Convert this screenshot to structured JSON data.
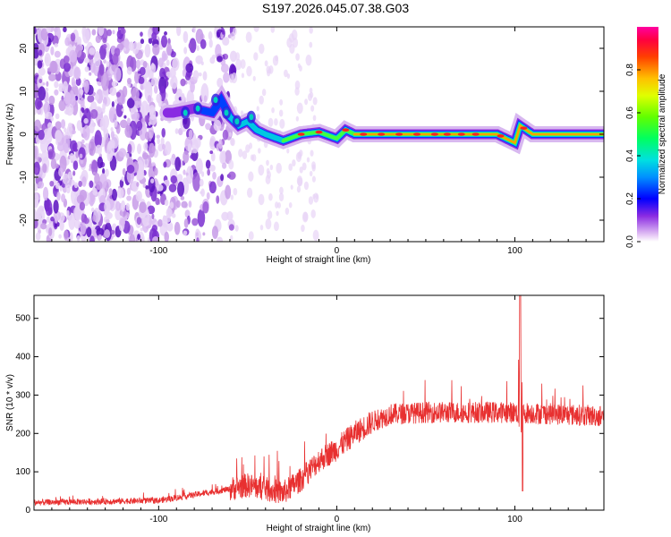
{
  "title": "S197.2026.045.07.38.G03",
  "chart_data": [
    {
      "type": "heatmap",
      "xlabel": "Height of straight line (km)",
      "ylabel": "Frequency (Hz)",
      "xlim": [
        -170,
        150
      ],
      "ylim": [
        -25,
        25
      ],
      "xticks": [
        -100,
        0,
        100
      ],
      "yticks": [
        20,
        10,
        0,
        -10,
        -20
      ],
      "colorbar": {
        "label": "Normalized spectral amplitude",
        "range": [
          0,
          1
        ],
        "ticks": [
          0.0,
          0.2,
          0.4,
          0.6,
          0.8
        ],
        "tick_labels": [
          "0.0",
          "0.2",
          "0.4",
          "0.6",
          "0.8"
        ]
      },
      "ridge": {
        "description_points_x": [
          -92,
          -80,
          -70,
          -65,
          -60,
          -55,
          -50,
          -45,
          -40,
          -30,
          -20,
          -10,
          0,
          5,
          10,
          20,
          40,
          60,
          80,
          90,
          95,
          100,
          103,
          110,
          130,
          150
        ],
        "description_points_y": [
          5,
          6,
          5,
          8,
          4,
          2,
          3,
          1,
          0,
          -1.5,
          0,
          0.5,
          -1,
          1,
          0,
          0,
          0,
          0,
          0,
          0,
          -1,
          -2,
          2,
          0,
          0,
          0
        ]
      }
    },
    {
      "type": "line",
      "xlabel": "Height of straight line (km)",
      "ylabel": "SNR (10 * v/v)",
      "xlim": [
        -170,
        150
      ],
      "ylim": [
        0,
        560
      ],
      "xticks": [
        -100,
        0,
        100
      ],
      "yticks": [
        0,
        100,
        200,
        300,
        400,
        500
      ],
      "color": "#e83030",
      "baseline_trend": {
        "x": [
          -170,
          -100,
          -80,
          -60,
          -50,
          -40,
          -30,
          -20,
          -10,
          0,
          10,
          20,
          30,
          50,
          100,
          150
        ],
        "y": [
          20,
          25,
          40,
          55,
          65,
          55,
          45,
          80,
          130,
          160,
          200,
          230,
          250,
          255,
          255,
          245
        ]
      },
      "spike": {
        "x": 103,
        "peak": 560,
        "min": 50
      }
    }
  ]
}
